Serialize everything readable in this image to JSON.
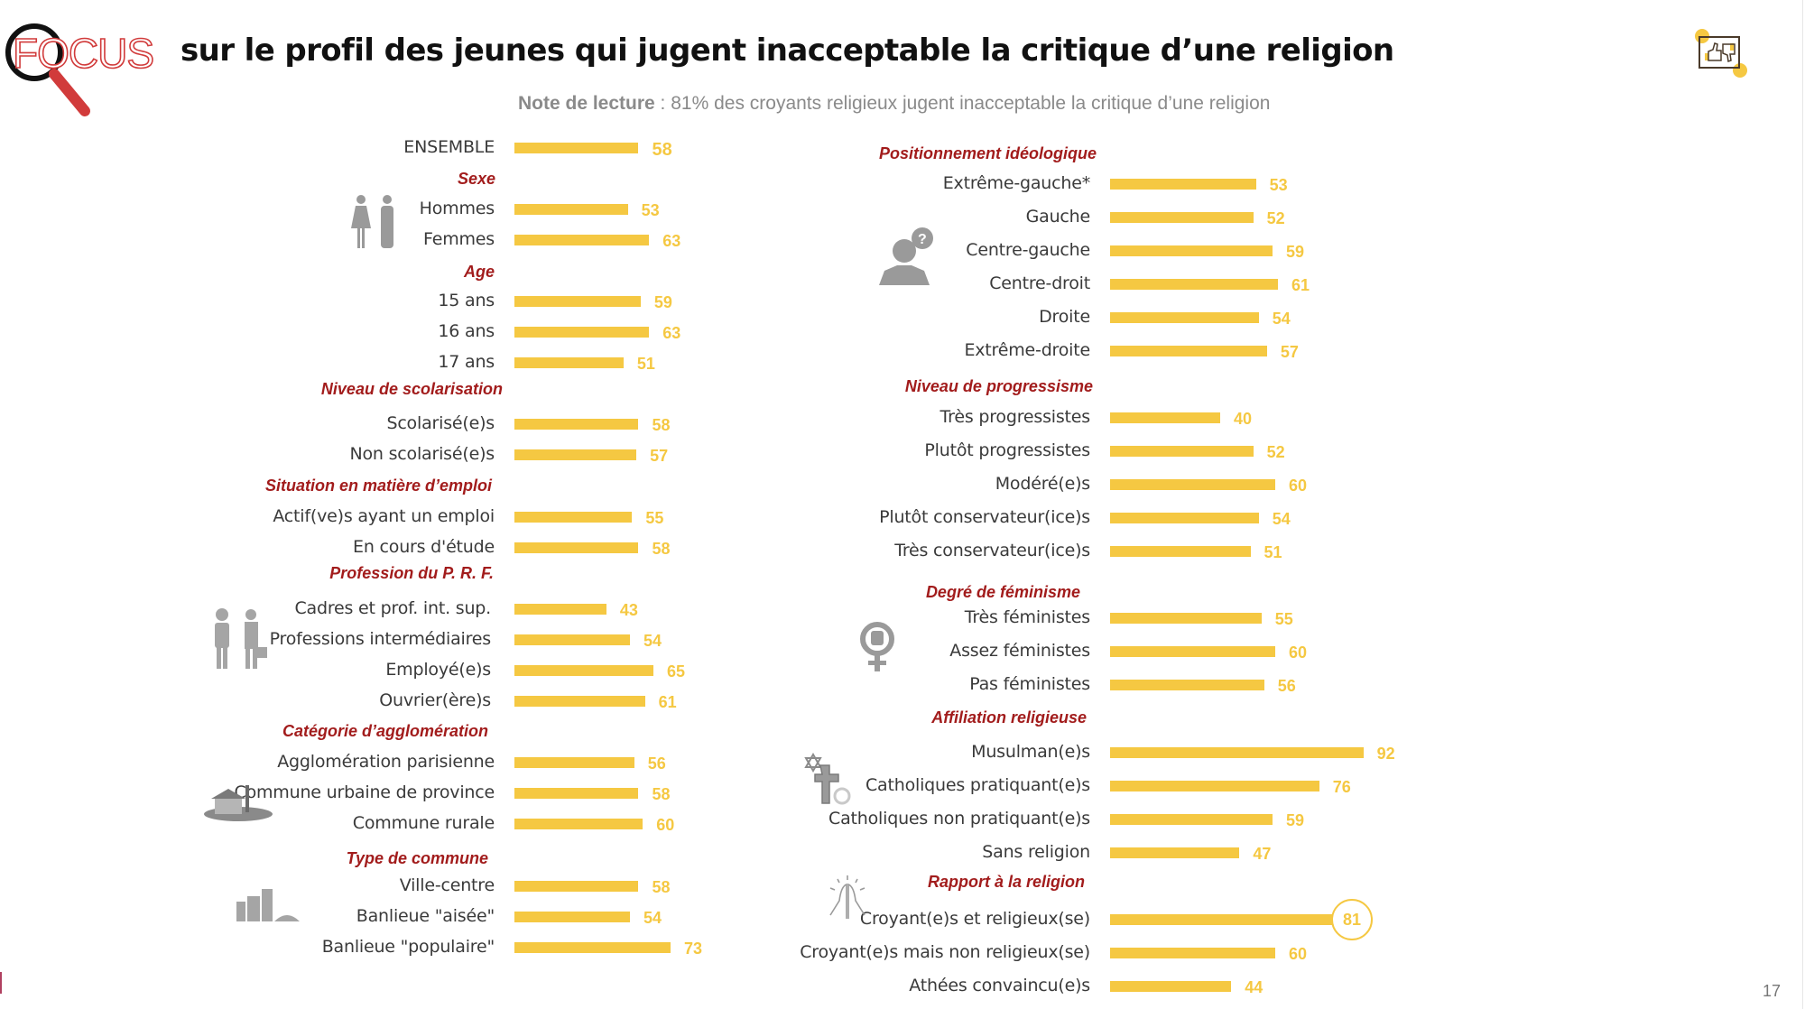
{
  "header": {
    "logo_text": "FOCUS",
    "title": "sur le profil des jeunes qui jugent inacceptable la critique d’une religion",
    "subtitle_bold": "Note de lecture",
    "subtitle_rest": " : 81% des croyants religieux jugent inacceptable la critique d’une religion",
    "corner_icon": "thumbs-up-down-icon"
  },
  "footer": {
    "page_number": "17"
  },
  "colors": {
    "bar": "#f5c842",
    "section_title": "#a21c1c",
    "label": "#3a3a3a",
    "logo_red": "#d13b3b"
  },
  "chart_data": {
    "type": "bar",
    "orientation": "horizontal",
    "title": "sur le profil des jeunes qui jugent inacceptable la critique d’une religion",
    "unit": "%",
    "highlight": {
      "section": "Rapport à la religion",
      "category": "Croyant(e)s et religieux(se)",
      "value": 81
    },
    "columns": [
      {
        "sections": [
          {
            "title": "",
            "icon": "",
            "items": [
              {
                "label": "ENSEMBLE",
                "value": 58
              }
            ]
          },
          {
            "title": "Sexe",
            "icon": "man-woman-icon",
            "items": [
              {
                "label": "Hommes",
                "value": 53
              },
              {
                "label": "Femmes",
                "value": 63
              }
            ]
          },
          {
            "title": "Age",
            "icon": "",
            "items": [
              {
                "label": "15 ans",
                "value": 59
              },
              {
                "label": "16 ans",
                "value": 63
              },
              {
                "label": "17 ans",
                "value": 51
              }
            ]
          },
          {
            "title": "Niveau de scolarisation",
            "icon": "",
            "items": [
              {
                "label": "Scolarisé(e)s",
                "value": 58
              },
              {
                "label": "Non scolarisé(e)s",
                "value": 57
              }
            ]
          },
          {
            "title": "Situation en matière d’emploi",
            "icon": "",
            "items": [
              {
                "label": "Actif(ve)s ayant un emploi",
                "value": 55
              },
              {
                "label": "En cours d'étude",
                "value": 58
              }
            ]
          },
          {
            "title": "Profession du P. R. F.",
            "icon": "workers-icon",
            "items": [
              {
                "label": "Cadres et prof. int. sup.",
                "value": 43
              },
              {
                "label": "Professions intermédiaires",
                "value": 54
              },
              {
                "label": "Employé(e)s",
                "value": 65
              },
              {
                "label": "Ouvrier(ère)s",
                "value": 61
              }
            ]
          },
          {
            "title": "Catégorie d’agglomération",
            "icon": "rural-house-icon",
            "items": [
              {
                "label": "Agglomération parisienne",
                "value": 56
              },
              {
                "label": "Commune urbaine de province",
                "value": 58
              },
              {
                "label": "Commune rurale",
                "value": 60
              }
            ]
          },
          {
            "title": "Type de commune",
            "icon": "city-buildings-icon",
            "items": [
              {
                "label": "Ville-centre",
                "value": 58
              },
              {
                "label": "Banlieue \"aisée\"",
                "value": 54
              },
              {
                "label": "Banlieue \"populaire\"",
                "value": 73
              }
            ]
          }
        ]
      },
      {
        "sections": [
          {
            "title": "Positionnement idéologique",
            "icon": "person-question-icon",
            "items": [
              {
                "label": "Extrême-gauche*",
                "value": 53
              },
              {
                "label": "Gauche",
                "value": 52
              },
              {
                "label": "Centre-gauche",
                "value": 59
              },
              {
                "label": "Centre-droit",
                "value": 61
              },
              {
                "label": "Droite",
                "value": 54
              },
              {
                "label": "Extrême-droite",
                "value": 57
              }
            ]
          },
          {
            "title": "Niveau de progressisme",
            "icon": "",
            "items": [
              {
                "label": "Très progressistes",
                "value": 40
              },
              {
                "label": "Plutôt progressistes",
                "value": 52
              },
              {
                "label": "Modéré(e)s",
                "value": 60
              },
              {
                "label": "Plutôt conservateur(ice)s",
                "value": 54
              },
              {
                "label": "Très conservateur(ice)s",
                "value": 51
              }
            ]
          },
          {
            "title": "Degré de féminisme",
            "icon": "feminist-fist-icon",
            "items": [
              {
                "label": "Très féministes",
                "value": 55
              },
              {
                "label": "Assez féministes",
                "value": 60
              },
              {
                "label": "Pas féministes",
                "value": 56
              }
            ]
          },
          {
            "title": "Affiliation religieuse",
            "icon": "religion-symbols-icon",
            "items": [
              {
                "label": "Musulman(e)s",
                "value": 92
              },
              {
                "label": "Catholiques pratiquant(e)s",
                "value": 76
              },
              {
                "label": "Catholiques non pratiquant(e)s",
                "value": 59
              },
              {
                "label": "Sans religion",
                "value": 47
              }
            ]
          },
          {
            "title": "Rapport à la religion",
            "icon": "praying-hands-icon",
            "items": [
              {
                "label": "Croyant(e)s et religieux(se)",
                "value": 81
              },
              {
                "label": "Croyant(e)s mais non religieux(se)",
                "value": 60
              },
              {
                "label": "Athées convaincu(e)s",
                "value": 44
              }
            ]
          }
        ]
      }
    ]
  }
}
